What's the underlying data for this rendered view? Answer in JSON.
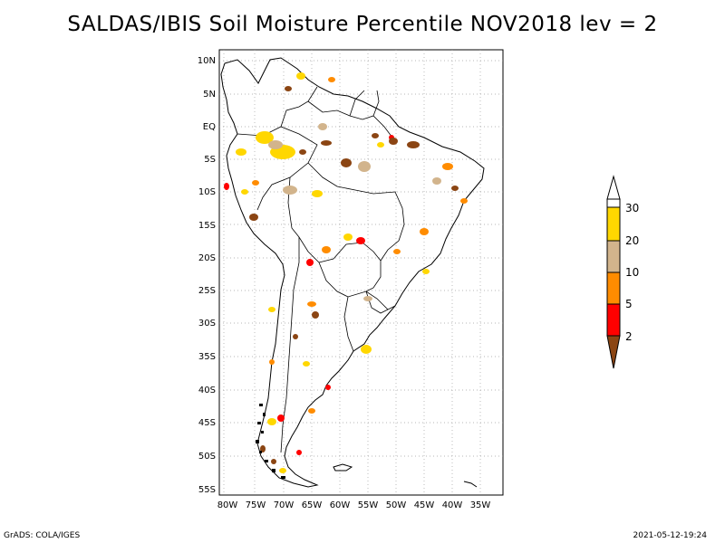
{
  "title": "SALDAS/IBIS Soil Moisture Percentile NOV2018 lev = 2",
  "map": {
    "lat_labels": [
      "10N",
      "5N",
      "EQ",
      "5S",
      "10S",
      "15S",
      "20S",
      "25S",
      "30S",
      "35S",
      "40S",
      "45S",
      "50S",
      "55S"
    ],
    "lon_labels": [
      "80W",
      "75W",
      "70W",
      "65W",
      "60W",
      "55W",
      "50W",
      "45W",
      "40W",
      "35W"
    ],
    "gridlines": true,
    "frame_color": "#000000",
    "grid_color": "#a0a0a0"
  },
  "colorbar": {
    "labels": [
      "30",
      "20",
      "10",
      "5",
      "2"
    ],
    "colors": {
      "above_30": "#ffffff",
      "20_30": "#ffd700",
      "10_20": "#d2b48c",
      "5_10": "#ff8c00",
      "2_5": "#ff0000",
      "below_2": "#8b4513"
    }
  },
  "footer": {
    "left": "GrADS: COLA/IGES",
    "right": "2021-05-12-19:24"
  }
}
